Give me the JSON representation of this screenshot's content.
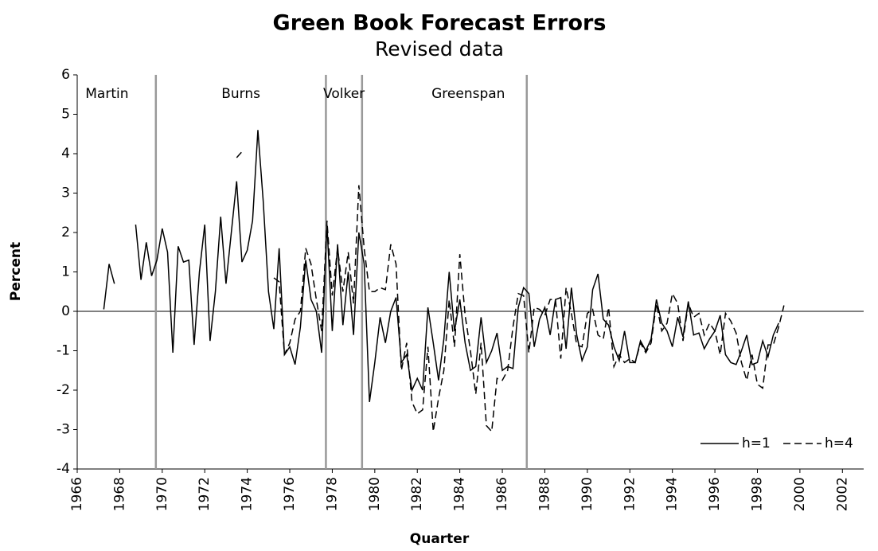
{
  "chart_data": {
    "type": "line",
    "title": "Green Book Forecast Errors",
    "subtitle": "Revised data",
    "x_label": "Quarter",
    "y_label": "Percent",
    "xlim": [
      1966,
      2003
    ],
    "xticks": [
      1966,
      1968,
      1970,
      1972,
      1974,
      1976,
      1978,
      1980,
      1982,
      1984,
      1986,
      1988,
      1990,
      1992,
      1994,
      1996,
      1998,
      2000,
      2002
    ],
    "ylim": [
      -4,
      6
    ],
    "yticks": [
      -4,
      -3,
      -2,
      -1,
      0,
      1,
      2,
      3,
      4,
      5,
      6
    ],
    "legend": "lower right",
    "eras": [
      "Martin",
      "Burns",
      "Volker",
      "Greenspan"
    ],
    "dividers": [
      1969.7,
      1977.7,
      1979.4,
      1987.15
    ],
    "x": [
      1967.25,
      1967.5,
      1967.75,
      1968,
      1968.25,
      1968.5,
      1968.75,
      1969,
      1969.25,
      1969.5,
      1969.75,
      1970,
      1970.25,
      1970.5,
      1970.75,
      1971,
      1971.25,
      1971.5,
      1971.75,
      1972,
      1972.25,
      1972.5,
      1972.75,
      1973,
      1973.25,
      1973.5,
      1973.75,
      1974,
      1974.25,
      1974.5,
      1974.75,
      1975,
      1975.25,
      1975.5,
      1975.75,
      1976,
      1976.25,
      1976.5,
      1976.75,
      1977,
      1977.25,
      1977.5,
      1977.75,
      1978,
      1978.25,
      1978.5,
      1978.75,
      1979,
      1979.25,
      1979.5,
      1979.75,
      1980,
      1980.25,
      1980.5,
      1980.75,
      1981,
      1981.25,
      1981.5,
      1981.75,
      1982,
      1982.25,
      1982.5,
      1982.75,
      1983,
      1983.25,
      1983.5,
      1983.75,
      1984,
      1984.25,
      1984.5,
      1984.75,
      1985,
      1985.25,
      1985.5,
      1985.75,
      1986,
      1986.25,
      1986.5,
      1986.75,
      1987,
      1987.25,
      1987.5,
      1987.75,
      1988,
      1988.25,
      1988.5,
      1988.75,
      1989,
      1989.25,
      1989.5,
      1989.75,
      1990,
      1990.25,
      1990.5,
      1990.75,
      1991,
      1991.25,
      1991.5,
      1991.75,
      1992,
      1992.25,
      1992.5,
      1992.75,
      1993,
      1993.25,
      1993.5,
      1993.75,
      1994,
      1994.25,
      1994.5,
      1994.75,
      1995,
      1995.25,
      1995.5,
      1995.75,
      1996,
      1996.25,
      1996.5,
      1996.75,
      1997,
      1997.25,
      1997.5,
      1997.75,
      1998,
      1998.25,
      1998.5,
      1998.75,
      1999,
      1999.25
    ],
    "series": [
      {
        "name": "h=1",
        "color": "#000000",
        "dash": false,
        "values": [
          0.05,
          1.2,
          0.7,
          null,
          null,
          null,
          2.2,
          0.8,
          1.75,
          0.9,
          1.3,
          2.1,
          1.5,
          -1.05,
          1.65,
          1.25,
          1.3,
          -0.85,
          1.0,
          2.2,
          -0.75,
          0.5,
          2.4,
          0.7,
          2.0,
          3.3,
          1.25,
          1.55,
          2.3,
          4.6,
          2.8,
          0.5,
          -0.45,
          1.6,
          -1.1,
          -0.9,
          -1.35,
          -0.4,
          1.3,
          0.3,
          0.0,
          -1.05,
          2.2,
          -0.5,
          1.7,
          -0.35,
          1.0,
          -0.6,
          2.0,
          1.2,
          -2.3,
          -1.3,
          -0.15,
          -0.8,
          0.0,
          0.35,
          -1.3,
          -1.1,
          -2.0,
          -1.7,
          -2.0,
          0.1,
          -0.8,
          -1.75,
          -0.7,
          1.0,
          -0.5,
          0.3,
          -0.8,
          -1.5,
          -1.4,
          -0.15,
          -1.3,
          -1.0,
          -0.55,
          -1.5,
          -1.4,
          -1.45,
          0.1,
          0.6,
          0.45,
          -0.9,
          -0.2,
          0.1,
          -0.6,
          0.3,
          0.35,
          -0.95,
          0.6,
          -0.6,
          -1.25,
          -0.9,
          0.55,
          0.95,
          -0.2,
          -0.35,
          -0.9,
          -1.25,
          -0.5,
          -1.3,
          -1.3,
          -0.75,
          -1.0,
          -0.7,
          0.3,
          -0.3,
          -0.5,
          -0.9,
          -0.15,
          -0.65,
          0.25,
          -0.6,
          -0.55,
          -0.95,
          -0.7,
          -0.5,
          -0.1,
          -1.1,
          -1.3,
          -1.35,
          -1.0,
          -0.6,
          -1.35,
          -1.3,
          -0.75,
          -1.15,
          -0.6,
          -0.3,
          null
        ]
      },
      {
        "name": "h=4",
        "color": "#000000",
        "dash": true,
        "values": [
          null,
          null,
          null,
          null,
          null,
          null,
          null,
          null,
          null,
          null,
          null,
          null,
          null,
          null,
          null,
          null,
          null,
          null,
          null,
          null,
          null,
          null,
          null,
          null,
          null,
          3.9,
          4.05,
          null,
          null,
          null,
          null,
          null,
          0.85,
          0.75,
          -1.1,
          -0.8,
          -0.2,
          0.0,
          1.6,
          1.2,
          0.3,
          -0.5,
          2.3,
          0.4,
          1.6,
          0.5,
          1.5,
          0.2,
          3.2,
          1.6,
          0.5,
          0.5,
          0.6,
          0.55,
          1.7,
          1.2,
          -1.5,
          -0.8,
          -2.3,
          -2.6,
          -2.5,
          -0.9,
          -3.05,
          -2.2,
          -1.5,
          0.3,
          -0.9,
          1.45,
          -0.1,
          -1.0,
          -2.1,
          -0.8,
          -2.9,
          -3.05,
          -1.7,
          -1.75,
          -1.5,
          -0.4,
          0.45,
          0.4,
          -1.05,
          0.1,
          0.05,
          -0.1,
          0.3,
          0.3,
          -1.2,
          0.6,
          -0.05,
          -0.85,
          -0.9,
          -0.05,
          0.05,
          -0.6,
          -0.7,
          0.1,
          -1.4,
          -1.1,
          -1.3,
          -1.2,
          -1.3,
          -0.8,
          -1.05,
          -0.8,
          0.2,
          -0.5,
          -0.3,
          0.45,
          0.2,
          -0.75,
          0.2,
          -0.15,
          -0.05,
          -0.6,
          -0.3,
          -0.5,
          -1.1,
          -0.05,
          -0.25,
          -0.55,
          -1.3,
          -1.75,
          -1.1,
          -1.85,
          -1.95,
          -0.85,
          -0.85,
          -0.4,
          0.15
        ]
      }
    ]
  }
}
